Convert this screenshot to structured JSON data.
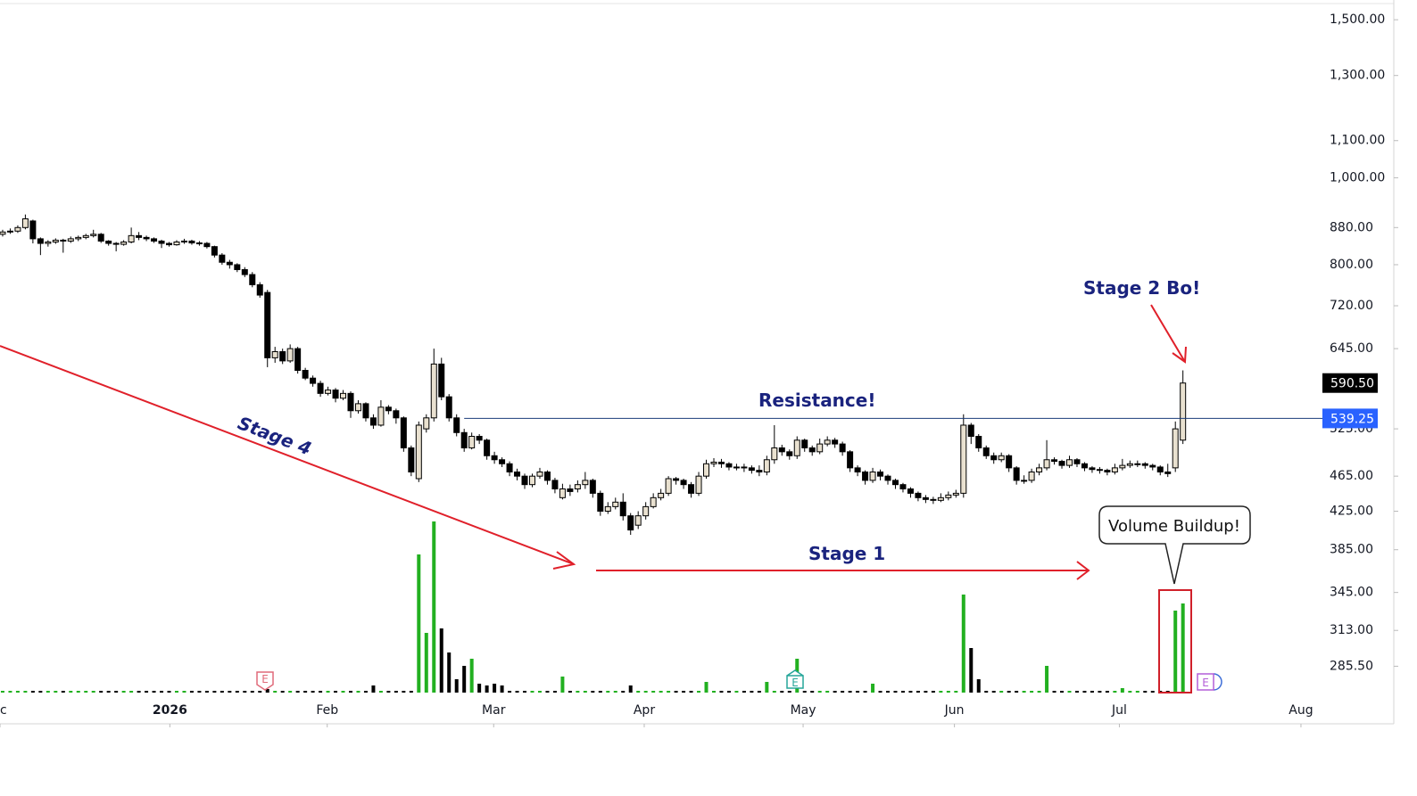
{
  "chart_data": {
    "type": "candlestick",
    "ylim": [
      265,
      1560
    ],
    "log": true,
    "yticks": [
      {
        "value": 1500,
        "label": "1,500.00"
      },
      {
        "value": 1300,
        "label": "1,300.00"
      },
      {
        "value": 1100,
        "label": "1,100.00"
      },
      {
        "value": 1000,
        "label": "1,000.00"
      },
      {
        "value": 880,
        "label": "880.00"
      },
      {
        "value": 800,
        "label": "800.00"
      },
      {
        "value": 720,
        "label": "720.00"
      },
      {
        "value": 645,
        "label": "645.00"
      },
      {
        "value": 525,
        "label": "525.00"
      },
      {
        "value": 465,
        "label": "465.00"
      },
      {
        "value": 425,
        "label": "425.00"
      },
      {
        "value": 385,
        "label": "385.00"
      },
      {
        "value": 345,
        "label": "345.00"
      },
      {
        "value": 313,
        "label": "313.00"
      },
      {
        "value": 285.5,
        "label": "285.50"
      }
    ],
    "xlim": [
      -0.35,
      174.2
    ],
    "xticks": [
      {
        "value": -0.35,
        "label": "c"
      },
      {
        "value": 22.1,
        "label": "2026"
      },
      {
        "value": 42.9,
        "label": "Feb"
      },
      {
        "value": 64.9,
        "label": "Mar"
      },
      {
        "value": 84.8,
        "label": "Apr"
      },
      {
        "value": 105.8,
        "label": "May"
      },
      {
        "value": 125.8,
        "label": "Jun"
      },
      {
        "value": 147.6,
        "label": "Jul"
      },
      {
        "value": 171.6,
        "label": "Aug"
      }
    ],
    "up_color": "#e9e1d0",
    "down_color": "#000000",
    "volume_up_color": "#22b020",
    "volume_down_color": "#000000",
    "ohlc": [
      [
        865,
        875,
        860,
        870
      ],
      [
        870,
        878,
        866,
        872
      ],
      [
        872,
        885,
        868,
        880
      ],
      [
        880,
        910,
        876,
        900
      ],
      [
        895,
        898,
        845,
        855
      ],
      [
        855,
        858,
        820,
        845
      ],
      [
        845,
        852,
        838,
        848
      ],
      [
        848,
        856,
        844,
        852
      ],
      [
        852,
        855,
        825,
        850
      ],
      [
        850,
        860,
        846,
        855
      ],
      [
        855,
        862,
        850,
        858
      ],
      [
        858,
        866,
        854,
        862
      ],
      [
        862,
        875,
        858,
        865
      ],
      [
        865,
        868,
        846,
        850
      ],
      [
        850,
        852,
        840,
        845
      ],
      [
        845,
        848,
        828,
        843
      ],
      [
        843,
        852,
        840,
        848
      ],
      [
        848,
        880,
        845,
        862
      ],
      [
        862,
        870,
        852,
        858
      ],
      [
        858,
        862,
        850,
        855
      ],
      [
        855,
        858,
        846,
        850
      ],
      [
        850,
        853,
        835,
        845
      ],
      [
        845,
        848,
        838,
        842
      ],
      [
        842,
        852,
        840,
        848
      ],
      [
        848,
        855,
        844,
        850
      ],
      [
        850,
        853,
        842,
        846
      ],
      [
        846,
        850,
        840,
        845
      ],
      [
        845,
        848,
        834,
        838
      ],
      [
        838,
        840,
        815,
        820
      ],
      [
        820,
        824,
        800,
        805
      ],
      [
        805,
        810,
        792,
        800
      ],
      [
        800,
        803,
        785,
        790
      ],
      [
        790,
        795,
        775,
        780
      ],
      [
        780,
        785,
        755,
        760
      ],
      [
        760,
        765,
        735,
        740
      ],
      [
        745,
        750,
        615,
        630
      ],
      [
        630,
        648,
        622,
        640
      ],
      [
        640,
        645,
        620,
        625
      ],
      [
        625,
        652,
        622,
        645
      ],
      [
        645,
        648,
        605,
        610
      ],
      [
        610,
        614,
        595,
        598
      ],
      [
        598,
        602,
        585,
        590
      ],
      [
        590,
        594,
        570,
        575
      ],
      [
        575,
        585,
        572,
        580
      ],
      [
        580,
        583,
        562,
        568
      ],
      [
        568,
        580,
        565,
        575
      ],
      [
        575,
        578,
        540,
        550
      ],
      [
        550,
        565,
        546,
        560
      ],
      [
        560,
        562,
        535,
        540
      ],
      [
        540,
        545,
        525,
        530
      ],
      [
        530,
        565,
        528,
        555
      ],
      [
        555,
        558,
        545,
        550
      ],
      [
        550,
        553,
        532,
        540
      ],
      [
        540,
        542,
        495,
        500
      ],
      [
        500,
        503,
        465,
        470
      ],
      [
        462,
        535,
        458,
        530
      ],
      [
        525,
        545,
        520,
        540
      ],
      [
        540,
        645,
        535,
        620
      ],
      [
        620,
        630,
        565,
        570
      ],
      [
        570,
        574,
        535,
        540
      ],
      [
        540,
        545,
        515,
        520
      ],
      [
        520,
        525,
        495,
        500
      ],
      [
        500,
        520,
        498,
        515
      ],
      [
        515,
        518,
        505,
        510
      ],
      [
        510,
        512,
        485,
        490
      ],
      [
        490,
        495,
        480,
        485
      ],
      [
        485,
        488,
        476,
        480
      ],
      [
        480,
        483,
        465,
        470
      ],
      [
        470,
        474,
        460,
        465
      ],
      [
        465,
        468,
        450,
        455
      ],
      [
        455,
        468,
        452,
        465
      ],
      [
        465,
        475,
        462,
        470
      ],
      [
        470,
        472,
        455,
        460
      ],
      [
        460,
        463,
        445,
        450
      ],
      [
        440,
        456,
        438,
        450
      ],
      [
        450,
        455,
        442,
        447
      ],
      [
        450,
        460,
        446,
        455
      ],
      [
        455,
        470,
        450,
        460
      ],
      [
        460,
        462,
        440,
        445
      ],
      [
        445,
        448,
        420,
        425
      ],
      [
        425,
        435,
        422,
        430
      ],
      [
        430,
        440,
        427,
        435
      ],
      [
        435,
        445,
        415,
        420
      ],
      [
        420,
        423,
        400,
        405
      ],
      [
        410,
        425,
        406,
        420
      ],
      [
        420,
        435,
        416,
        430
      ],
      [
        430,
        445,
        428,
        440
      ],
      [
        440,
        450,
        437,
        445
      ],
      [
        445,
        465,
        442,
        462
      ],
      [
        462,
        464,
        455,
        460
      ],
      [
        460,
        462,
        450,
        455
      ],
      [
        455,
        458,
        440,
        445
      ],
      [
        445,
        470,
        442,
        465
      ],
      [
        465,
        485,
        462,
        480
      ],
      [
        480,
        487,
        476,
        482
      ],
      [
        482,
        486,
        475,
        480
      ],
      [
        480,
        482,
        472,
        476
      ],
      [
        476,
        480,
        472,
        476
      ],
      [
        476,
        480,
        470,
        475
      ],
      [
        475,
        478,
        468,
        472
      ],
      [
        472,
        478,
        465,
        470
      ],
      [
        470,
        490,
        466,
        485
      ],
      [
        485,
        530,
        480,
        500
      ],
      [
        500,
        504,
        490,
        495
      ],
      [
        495,
        498,
        485,
        490
      ],
      [
        490,
        515,
        486,
        510
      ],
      [
        510,
        512,
        495,
        500
      ],
      [
        500,
        503,
        490,
        495
      ],
      [
        495,
        512,
        492,
        505
      ],
      [
        505,
        515,
        502,
        510
      ],
      [
        510,
        513,
        500,
        505
      ],
      [
        505,
        508,
        490,
        495
      ],
      [
        495,
        497,
        470,
        475
      ],
      [
        475,
        478,
        465,
        470
      ],
      [
        470,
        472,
        455,
        460
      ],
      [
        460,
        475,
        457,
        470
      ],
      [
        470,
        473,
        460,
        465
      ],
      [
        465,
        467,
        455,
        460
      ],
      [
        460,
        462,
        450,
        455
      ],
      [
        455,
        457,
        446,
        450
      ],
      [
        450,
        452,
        440,
        445
      ],
      [
        445,
        447,
        436,
        440
      ],
      [
        440,
        443,
        434,
        438
      ],
      [
        438,
        441,
        433,
        437
      ],
      [
        437,
        445,
        435,
        440
      ],
      [
        440,
        447,
        437,
        443
      ],
      [
        443,
        449,
        440,
        445
      ],
      [
        445,
        545,
        440,
        530
      ],
      [
        530,
        533,
        505,
        515
      ],
      [
        515,
        518,
        495,
        500
      ],
      [
        500,
        503,
        486,
        490
      ],
      [
        490,
        494,
        480,
        485
      ],
      [
        485,
        494,
        482,
        490
      ],
      [
        490,
        492,
        470,
        475
      ],
      [
        475,
        477,
        455,
        460
      ],
      [
        460,
        466,
        456,
        460
      ],
      [
        460,
        474,
        457,
        470
      ],
      [
        470,
        480,
        466,
        475
      ],
      [
        475,
        510,
        472,
        485
      ],
      [
        485,
        488,
        479,
        483
      ],
      [
        483,
        485,
        474,
        478
      ],
      [
        478,
        490,
        475,
        485
      ],
      [
        485,
        487,
        476,
        480
      ],
      [
        480,
        482,
        471,
        475
      ],
      [
        475,
        477,
        469,
        473
      ],
      [
        473,
        476,
        468,
        472
      ],
      [
        472,
        474,
        466,
        470
      ],
      [
        470,
        480,
        467,
        475
      ],
      [
        475,
        486,
        472,
        478
      ],
      [
        478,
        484,
        475,
        480
      ],
      [
        480,
        484,
        476,
        480
      ],
      [
        480,
        482,
        474,
        478
      ],
      [
        478,
        480,
        472,
        476
      ],
      [
        476,
        478,
        466,
        470
      ],
      [
        470,
        480,
        464,
        468
      ],
      [
        475,
        535,
        470,
        525
      ],
      [
        510,
        610,
        505,
        590.5
      ]
    ],
    "volume": [
      2,
      2,
      2,
      2,
      2,
      2,
      2,
      2,
      2,
      2,
      2,
      2,
      2,
      2,
      2,
      2,
      2,
      2,
      2,
      2,
      2,
      2,
      2,
      2,
      2,
      2,
      2,
      2,
      2,
      2,
      2,
      2,
      2,
      2,
      2,
      4,
      2,
      2,
      2,
      2,
      2,
      2,
      2,
      2,
      2,
      2,
      2,
      2,
      2,
      8,
      2,
      2,
      2,
      2,
      2,
      155,
      67,
      192,
      72,
      45,
      15,
      30,
      38,
      10,
      8,
      10,
      8,
      2,
      2,
      2,
      2,
      2,
      2,
      2,
      18,
      2,
      2,
      2,
      2,
      2,
      2,
      2,
      2,
      8,
      2,
      2,
      2,
      2,
      2,
      2,
      2,
      2,
      2,
      12,
      2,
      2,
      2,
      2,
      2,
      2,
      2,
      12,
      2,
      2,
      2,
      38,
      2,
      2,
      2,
      2,
      2,
      2,
      2,
      2,
      2,
      10,
      2,
      2,
      2,
      2,
      2,
      2,
      2,
      2,
      2,
      2,
      2,
      110,
      50,
      15,
      2,
      2,
      2,
      2,
      2,
      2,
      2,
      2,
      30,
      2,
      2,
      2,
      2,
      2,
      2,
      2,
      2,
      2,
      5,
      2,
      2,
      2,
      2,
      2,
      2,
      92,
      100
    ],
    "last_price": {
      "value": 590.5,
      "label": "590.50"
    },
    "resistance": {
      "value": 539.25,
      "label": "539.25",
      "color": "#2962ff"
    },
    "annotations": [
      "Stage 4",
      "Stage 1",
      "Resistance!",
      "Stage 2 Bo!",
      "Volume Buildup!"
    ],
    "events": [
      "E",
      "E",
      "E"
    ]
  }
}
